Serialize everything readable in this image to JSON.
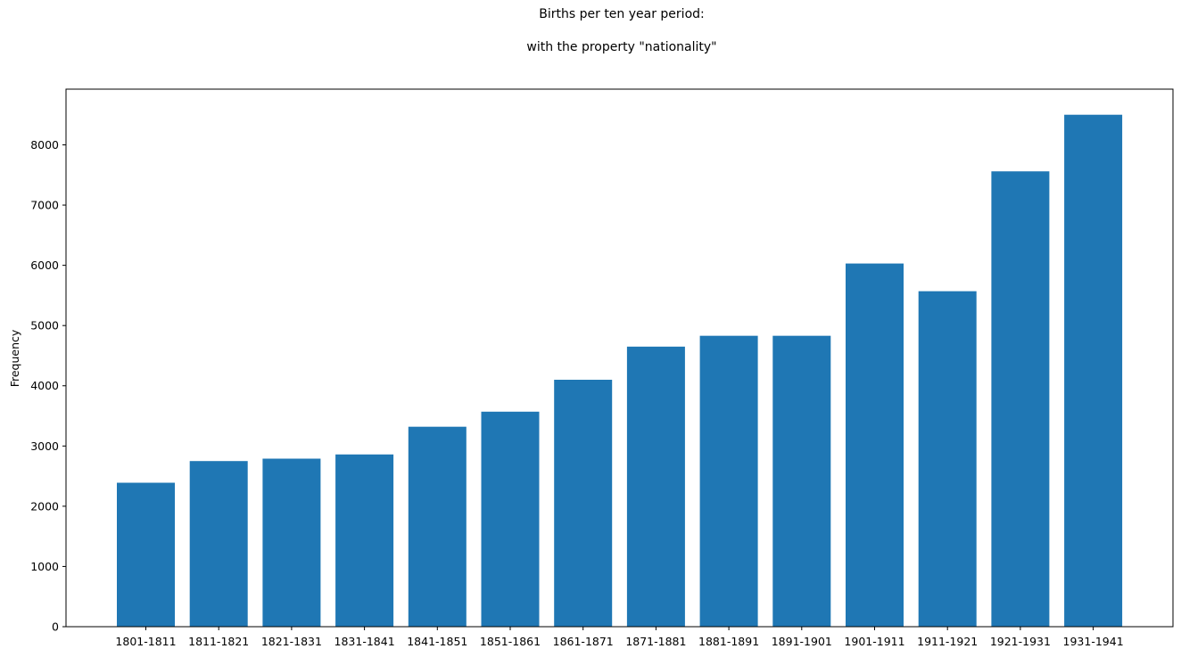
{
  "chart_data": {
    "type": "bar",
    "title": "Births per ten year period:",
    "subtitle": "with the property \"nationality\"",
    "xlabel": "",
    "ylabel": "Frequency",
    "categories": [
      "1801-1811",
      "1811-1821",
      "1821-1831",
      "1831-1841",
      "1841-1851",
      "1851-1861",
      "1861-1871",
      "1871-1881",
      "1881-1891",
      "1891-1901",
      "1901-1911",
      "1911-1921",
      "1921-1931",
      "1931-1941"
    ],
    "values": [
      2390,
      2750,
      2790,
      2860,
      3320,
      3570,
      4100,
      4650,
      4830,
      4830,
      6030,
      5570,
      7560,
      8500
    ],
    "ylim": [
      0,
      8925
    ],
    "yticks": [
      0,
      1000,
      2000,
      3000,
      4000,
      5000,
      6000,
      7000,
      8000
    ],
    "bar_color": "#1f77b4",
    "grid": false,
    "legend": "none"
  }
}
